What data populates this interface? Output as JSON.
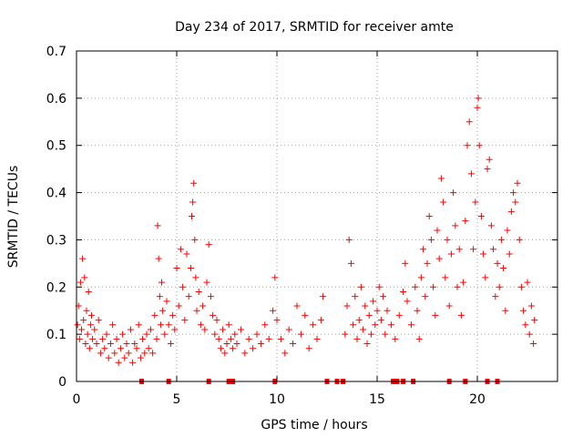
{
  "chart_data": {
    "type": "scatter",
    "title": "Day 234 of 2017, SRMTID for receiver amte",
    "xlabel": "GPS time / hours",
    "ylabel": "SRMTID / TECUs",
    "xlim": [
      0,
      24
    ],
    "ylim": [
      0,
      0.7
    ],
    "xticks": [
      {
        "value": 0,
        "label": "0"
      },
      {
        "value": 5,
        "label": "5"
      },
      {
        "value": 10,
        "label": "10"
      },
      {
        "value": 15,
        "label": "15"
      },
      {
        "value": 20,
        "label": "20"
      }
    ],
    "yticks": [
      {
        "value": 0,
        "label": "0"
      },
      {
        "value": 0.1,
        "label": "0.1"
      },
      {
        "value": 0.2,
        "label": "0.2"
      },
      {
        "value": 0.3,
        "label": "0.3"
      },
      {
        "value": 0.4,
        "label": "0.4"
      },
      {
        "value": 0.5,
        "label": "0.5"
      },
      {
        "value": 0.6,
        "label": "0.6"
      },
      {
        "value": 0.7,
        "label": "0.7"
      }
    ],
    "grid": true,
    "marker": "plus",
    "color": "#ff0000",
    "series": [
      {
        "name": "SRMTID",
        "points": [
          [
            0.05,
            0.12
          ],
          [
            0.1,
            0.16
          ],
          [
            0.15,
            0.09
          ],
          [
            0.2,
            0.21
          ],
          [
            0.25,
            0.11
          ],
          [
            0.3,
            0.26
          ],
          [
            0.35,
            0.13
          ],
          [
            0.4,
            0.22
          ],
          [
            0.45,
            0.08
          ],
          [
            0.5,
            0.15
          ],
          [
            0.55,
            0.1
          ],
          [
            0.6,
            0.19
          ],
          [
            0.65,
            0.07
          ],
          [
            0.7,
            0.12
          ],
          [
            0.75,
            0.14
          ],
          [
            0.8,
            0.09
          ],
          [
            0.9,
            0.11
          ],
          [
            1.0,
            0.08
          ],
          [
            1.1,
            0.13
          ],
          [
            1.2,
            0.06
          ],
          [
            1.3,
            0.09
          ],
          [
            1.4,
            0.07
          ],
          [
            1.5,
            0.1
          ],
          [
            1.6,
            0.05
          ],
          [
            1.7,
            0.08
          ],
          [
            1.8,
            0.12
          ],
          [
            1.9,
            0.06
          ],
          [
            2.0,
            0.09
          ],
          [
            2.1,
            0.04
          ],
          [
            2.2,
            0.07
          ],
          [
            2.3,
            0.1
          ],
          [
            2.4,
            0.05
          ],
          [
            2.5,
            0.08
          ],
          [
            2.6,
            0.06
          ],
          [
            2.7,
            0.11
          ],
          [
            2.8,
            0.04
          ],
          [
            2.9,
            0.08
          ],
          [
            3.0,
            0.07
          ],
          [
            3.1,
            0.12
          ],
          [
            3.2,
            0.05
          ],
          [
            3.3,
            0.09
          ],
          [
            3.4,
            0.06
          ],
          [
            3.5,
            0.1
          ],
          [
            3.6,
            0.07
          ],
          [
            3.7,
            0.11
          ],
          [
            3.8,
            0.06
          ],
          [
            3.9,
            0.14
          ],
          [
            4.0,
            0.09
          ],
          [
            4.05,
            0.33
          ],
          [
            4.1,
            0.26
          ],
          [
            4.15,
            0.18
          ],
          [
            4.2,
            0.12
          ],
          [
            4.25,
            0.21
          ],
          [
            4.3,
            0.15
          ],
          [
            4.4,
            0.1
          ],
          [
            4.5,
            0.17
          ],
          [
            4.6,
            0.12
          ],
          [
            4.7,
            0.08
          ],
          [
            4.8,
            0.14
          ],
          [
            4.9,
            0.11
          ],
          [
            5.0,
            0.24
          ],
          [
            5.1,
            0.16
          ],
          [
            5.2,
            0.28
          ],
          [
            5.3,
            0.2
          ],
          [
            5.4,
            0.13
          ],
          [
            5.5,
            0.27
          ],
          [
            5.6,
            0.18
          ],
          [
            5.7,
            0.24
          ],
          [
            5.75,
            0.35
          ],
          [
            5.8,
            0.38
          ],
          [
            5.85,
            0.42
          ],
          [
            5.9,
            0.3
          ],
          [
            5.95,
            0.22
          ],
          [
            6.0,
            0.15
          ],
          [
            6.1,
            0.19
          ],
          [
            6.2,
            0.12
          ],
          [
            6.3,
            0.16
          ],
          [
            6.4,
            0.11
          ],
          [
            6.5,
            0.21
          ],
          [
            6.6,
            0.29
          ],
          [
            6.7,
            0.18
          ],
          [
            6.8,
            0.14
          ],
          [
            6.9,
            0.1
          ],
          [
            7.0,
            0.13
          ],
          [
            7.1,
            0.09
          ],
          [
            7.2,
            0.07
          ],
          [
            7.3,
            0.11
          ],
          [
            7.4,
            0.06
          ],
          [
            7.5,
            0.08
          ],
          [
            7.6,
            0.12
          ],
          [
            7.7,
            0.09
          ],
          [
            7.8,
            0.07
          ],
          [
            7.9,
            0.1
          ],
          [
            8.0,
            0.08
          ],
          [
            8.2,
            0.11
          ],
          [
            8.4,
            0.06
          ],
          [
            8.6,
            0.09
          ],
          [
            8.8,
            0.07
          ],
          [
            9.0,
            0.1
          ],
          [
            9.2,
            0.08
          ],
          [
            9.4,
            0.12
          ],
          [
            9.6,
            0.09
          ],
          [
            9.8,
            0.15
          ],
          [
            9.9,
            0.22
          ],
          [
            10.0,
            0.13
          ],
          [
            10.2,
            0.09
          ],
          [
            10.4,
            0.06
          ],
          [
            10.6,
            0.11
          ],
          [
            10.8,
            0.08
          ],
          [
            11.0,
            0.16
          ],
          [
            11.2,
            0.1
          ],
          [
            11.4,
            0.14
          ],
          [
            11.6,
            0.07
          ],
          [
            11.8,
            0.12
          ],
          [
            12.0,
            0.09
          ],
          [
            12.2,
            0.13
          ],
          [
            12.3,
            0.18
          ],
          [
            13.4,
            0.1
          ],
          [
            13.5,
            0.16
          ],
          [
            13.6,
            0.3
          ],
          [
            13.7,
            0.25
          ],
          [
            13.8,
            0.12
          ],
          [
            13.9,
            0.18
          ],
          [
            14.0,
            0.09
          ],
          [
            14.1,
            0.13
          ],
          [
            14.2,
            0.2
          ],
          [
            14.3,
            0.11
          ],
          [
            14.4,
            0.16
          ],
          [
            14.5,
            0.08
          ],
          [
            14.6,
            0.14
          ],
          [
            14.7,
            0.1
          ],
          [
            14.8,
            0.17
          ],
          [
            14.9,
            0.12
          ],
          [
            15.0,
            0.15
          ],
          [
            15.1,
            0.2
          ],
          [
            15.2,
            0.13
          ],
          [
            15.3,
            0.18
          ],
          [
            15.4,
            0.1
          ],
          [
            15.5,
            0.15
          ],
          [
            15.7,
            0.12
          ],
          [
            15.9,
            0.09
          ],
          [
            16.1,
            0.14
          ],
          [
            16.3,
            0.19
          ],
          [
            16.4,
            0.25
          ],
          [
            16.5,
            0.17
          ],
          [
            16.7,
            0.12
          ],
          [
            16.9,
            0.2
          ],
          [
            17.0,
            0.15
          ],
          [
            17.1,
            0.09
          ],
          [
            17.2,
            0.22
          ],
          [
            17.3,
            0.28
          ],
          [
            17.4,
            0.18
          ],
          [
            17.5,
            0.25
          ],
          [
            17.6,
            0.35
          ],
          [
            17.7,
            0.3
          ],
          [
            17.8,
            0.2
          ],
          [
            17.9,
            0.14
          ],
          [
            18.0,
            0.32
          ],
          [
            18.1,
            0.26
          ],
          [
            18.2,
            0.43
          ],
          [
            18.3,
            0.38
          ],
          [
            18.4,
            0.22
          ],
          [
            18.5,
            0.3
          ],
          [
            18.6,
            0.16
          ],
          [
            18.7,
            0.27
          ],
          [
            18.8,
            0.4
          ],
          [
            18.9,
            0.33
          ],
          [
            19.0,
            0.2
          ],
          [
            19.1,
            0.28
          ],
          [
            19.2,
            0.14
          ],
          [
            19.3,
            0.21
          ],
          [
            19.4,
            0.34
          ],
          [
            19.5,
            0.5
          ],
          [
            19.6,
            0.55
          ],
          [
            19.7,
            0.44
          ],
          [
            19.8,
            0.28
          ],
          [
            19.9,
            0.38
          ],
          [
            20.0,
            0.58
          ],
          [
            20.05,
            0.6
          ],
          [
            20.1,
            0.5
          ],
          [
            20.2,
            0.35
          ],
          [
            20.3,
            0.27
          ],
          [
            20.4,
            0.22
          ],
          [
            20.5,
            0.45
          ],
          [
            20.6,
            0.47
          ],
          [
            20.7,
            0.33
          ],
          [
            20.8,
            0.28
          ],
          [
            20.9,
            0.18
          ],
          [
            21.0,
            0.25
          ],
          [
            21.1,
            0.2
          ],
          [
            21.2,
            0.3
          ],
          [
            21.3,
            0.24
          ],
          [
            21.4,
            0.15
          ],
          [
            21.5,
            0.32
          ],
          [
            21.6,
            0.27
          ],
          [
            21.7,
            0.36
          ],
          [
            21.8,
            0.4
          ],
          [
            21.9,
            0.38
          ],
          [
            22.0,
            0.42
          ],
          [
            22.1,
            0.3
          ],
          [
            22.2,
            0.2
          ],
          [
            22.3,
            0.15
          ],
          [
            22.4,
            0.12
          ],
          [
            22.5,
            0.21
          ],
          [
            22.6,
            0.1
          ],
          [
            22.7,
            0.16
          ],
          [
            22.8,
            0.08
          ],
          [
            22.85,
            0.13
          ]
        ]
      }
    ],
    "gap_marks_x": [
      3.25,
      4.6,
      6.6,
      7.6,
      7.8,
      9.9,
      12.5,
      13.0,
      13.3,
      15.8,
      16.0,
      16.3,
      16.8,
      18.6,
      19.4,
      20.5,
      21.0
    ]
  }
}
